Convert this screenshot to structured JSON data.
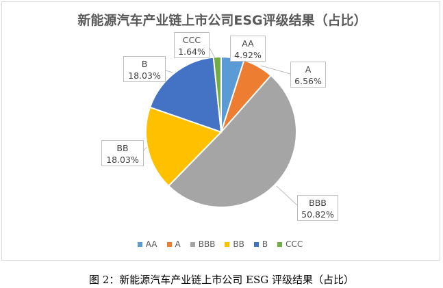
{
  "chart_data": {
    "type": "pie",
    "title": "新能源汽车产业链上市公司ESG评级结果（占比）",
    "categories": [
      "AA",
      "A",
      "BBB",
      "BB",
      "B",
      "CCC"
    ],
    "values": [
      4.92,
      6.56,
      50.82,
      18.03,
      18.03,
      1.64
    ],
    "value_labels": [
      "4.92%",
      "6.56%",
      "50.82%",
      "18.03%",
      "18.03%",
      "1.64%"
    ],
    "colors": [
      "#5B9BD5",
      "#ED7D31",
      "#A5A5A5",
      "#FFC000",
      "#4472C4",
      "#70AD47"
    ],
    "legend_position": "bottom",
    "start_angle_deg": 0,
    "direction": "clockwise",
    "xlabel": "",
    "ylabel": ""
  },
  "caption": "图 2：新能源汽车产业链上市公司 ESG 评级结果（占比）"
}
